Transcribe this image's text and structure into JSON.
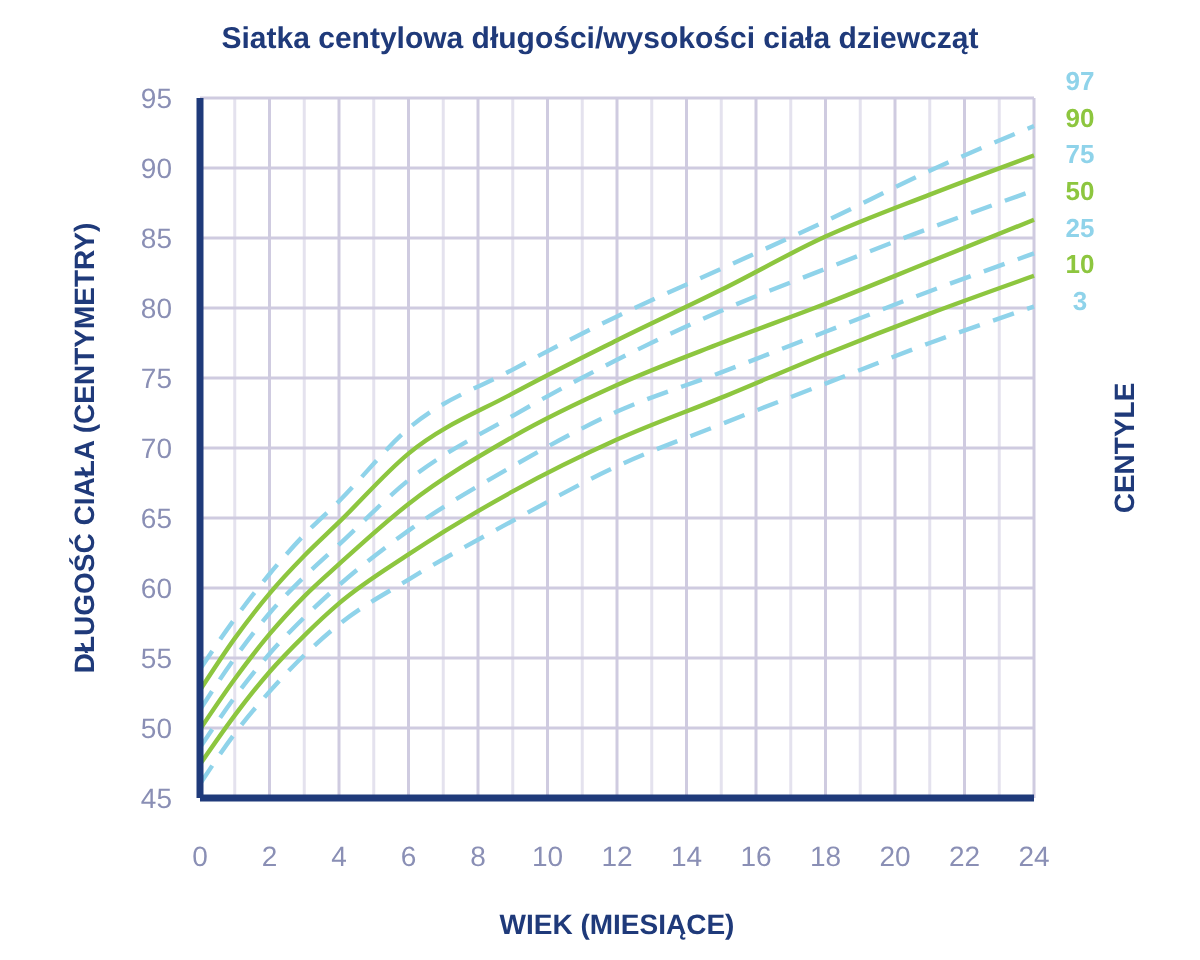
{
  "chart_data": {
    "type": "line",
    "title": "Siatka centylowa długości/wysokości ciała dziewcząt",
    "xlabel": "WIEK (MIESIĄCE)",
    "ylabel": "DŁUGOŚĆ CIAŁA (CENTYMETRY)",
    "y2label": "CENTYLE",
    "x": [
      0,
      1,
      2,
      3,
      4,
      6,
      9,
      12,
      15,
      18,
      21,
      24
    ],
    "xlim": [
      0,
      24
    ],
    "xticks": [
      0,
      {
        "value": 1,
        "label": null
      },
      2,
      {
        "value": 3,
        "label": null
      },
      4,
      {
        "value": 5,
        "label": null
      },
      6,
      {
        "value": 7,
        "label": null
      },
      8,
      {
        "value": 9,
        "label": null
      },
      10,
      {
        "value": 11,
        "label": null
      },
      12,
      {
        "value": 13,
        "label": null
      },
      14,
      {
        "value": 15,
        "label": null
      },
      16,
      {
        "value": 17,
        "label": null
      },
      18,
      {
        "value": 19,
        "label": null
      },
      20,
      {
        "value": 21,
        "label": null
      },
      22,
      {
        "value": 23,
        "label": null
      },
      24
    ],
    "ylim": [
      45,
      95
    ],
    "yticks": [
      45,
      50,
      55,
      60,
      65,
      70,
      75,
      80,
      85,
      90,
      95
    ],
    "grid": true,
    "legend": "right",
    "series": [
      {
        "name": "97",
        "color": "#8fd3ea",
        "line_style": "dashed",
        "values": [
          54.2,
          57.8,
          61.0,
          63.8,
          66.2,
          71.4,
          75.6,
          79.4,
          82.8,
          86.2,
          89.8,
          93.0
        ]
      },
      {
        "name": "90",
        "color": "#8dc63f",
        "line_style": "solid",
        "values": [
          52.7,
          56.4,
          59.6,
          62.3,
          64.7,
          69.6,
          73.9,
          77.7,
          81.3,
          85.1,
          88.1,
          90.9
        ]
      },
      {
        "name": "75",
        "color": "#8fd3ea",
        "line_style": "dashed",
        "values": [
          51.3,
          55.0,
          58.2,
          60.8,
          63.1,
          67.7,
          72.3,
          76.3,
          79.8,
          82.8,
          85.7,
          88.4
        ]
      },
      {
        "name": "50",
        "color": "#8dc63f",
        "line_style": "solid",
        "values": [
          49.9,
          53.5,
          56.7,
          59.4,
          61.7,
          66.0,
          70.8,
          74.5,
          77.5,
          80.3,
          83.3,
          86.3
        ]
      },
      {
        "name": "25",
        "color": "#8fd3ea",
        "line_style": "dashed",
        "values": [
          48.6,
          52.2,
          55.3,
          57.9,
          60.2,
          64.1,
          68.7,
          72.6,
          75.4,
          78.3,
          81.2,
          83.9
        ]
      },
      {
        "name": "10",
        "color": "#8dc63f",
        "line_style": "solid",
        "values": [
          47.4,
          50.9,
          54.0,
          56.6,
          58.9,
          62.4,
          66.9,
          70.6,
          73.6,
          76.7,
          79.6,
          82.3
        ]
      },
      {
        "name": "3",
        "color": "#8fd3ea",
        "line_style": "dashed",
        "values": [
          46.0,
          49.6,
          52.6,
          55.2,
          57.4,
          60.6,
          64.8,
          68.7,
          71.7,
          74.6,
          77.5,
          80.1
        ]
      }
    ]
  }
}
